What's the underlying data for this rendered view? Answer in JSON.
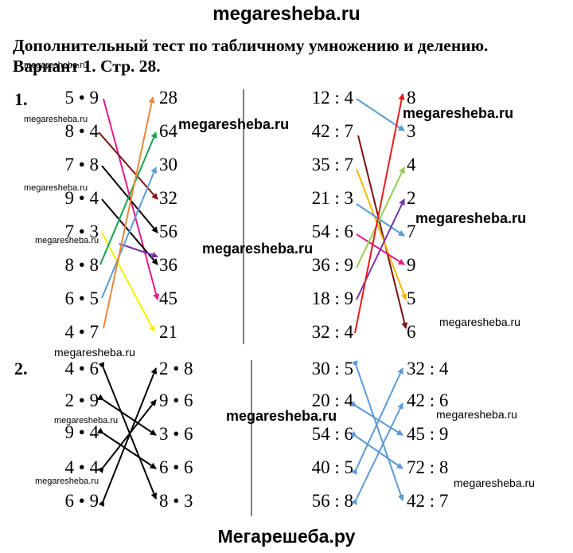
{
  "header": {
    "site": "megaresheba.ru"
  },
  "title": {
    "line1": "Дополнительный тест по табличному умножению и делению.",
    "line2": "Вариант 1. Стр. 28."
  },
  "task1": {
    "number": "1.",
    "left": {
      "expressions": [
        "5 • 9",
        "8 • 4",
        "7 • 8",
        "9 • 4",
        "7 • 3",
        "8 • 8",
        "6 • 5",
        "4 • 7"
      ],
      "answers": [
        "28",
        "64",
        "30",
        "32",
        "56",
        "36",
        "45",
        "21"
      ]
    },
    "right": {
      "expressions": [
        "12 : 4",
        "42 : 7",
        "35 : 7",
        "21 : 3",
        "54 : 6",
        "36 : 9",
        "18 : 9",
        "32 : 4"
      ],
      "answers": [
        "8",
        "3",
        "4",
        "2",
        "7",
        "9",
        "5",
        "6"
      ]
    }
  },
  "task2": {
    "number": "2.",
    "left": {
      "col1": [
        "4 • 6",
        "2 • 9",
        "9 • 4",
        "4 • 4",
        "6 • 9"
      ],
      "col2": [
        "2 • 8",
        "9 • 6",
        "3 • 6",
        "6 • 6",
        "8 • 3"
      ]
    },
    "right": {
      "col1": [
        "30 : 5",
        "20 : 4",
        "54 : 6",
        "40 : 5",
        "56 : 8"
      ],
      "col2": [
        "32 : 4",
        "42 : 6",
        "45 : 9",
        "72 : 8",
        "42 : 7"
      ]
    }
  },
  "watermarks": {
    "small": "megaresheba.ru",
    "big": "megaresheba.ru"
  },
  "footer": {
    "site": "Мегарешеба.ру"
  },
  "colors": {
    "pink": "#e8188a",
    "orange": "#e8873a",
    "darkred": "#7a1010",
    "green": "#16a34a",
    "black": "#000000",
    "blue": "#5b9bd5",
    "purple": "#7b2fa8",
    "yellow": "#f2f200",
    "red": "#e61b1b",
    "lightgreen": "#92d050",
    "amber": "#f5b800"
  }
}
